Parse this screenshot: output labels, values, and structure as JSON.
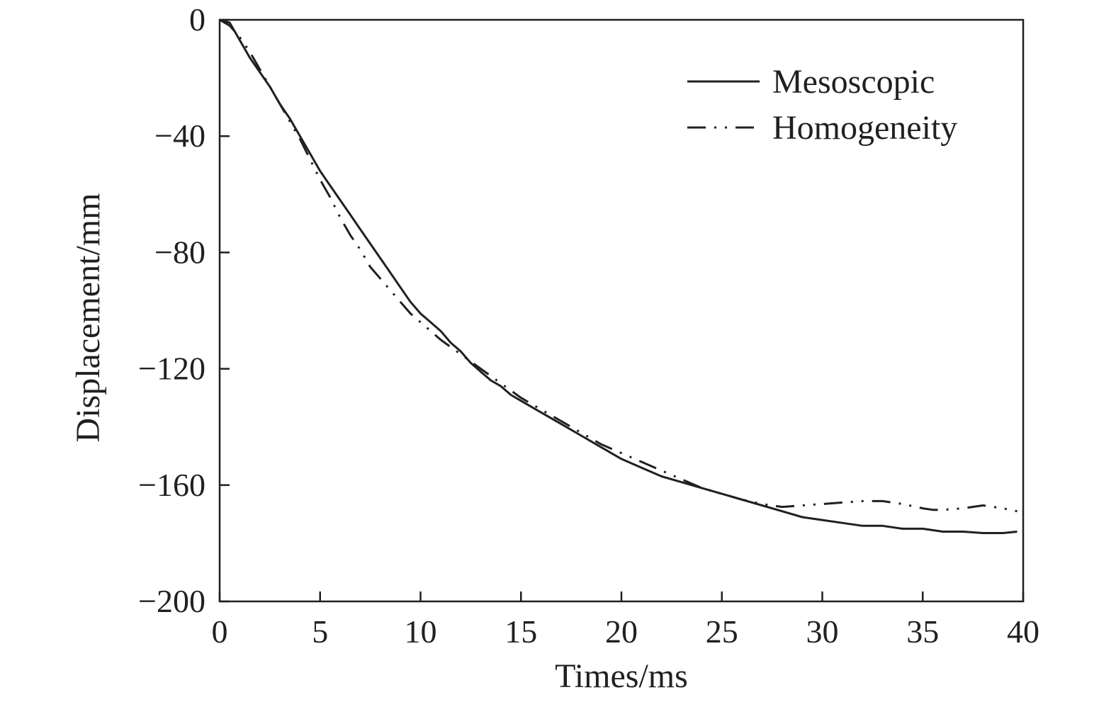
{
  "chart_data": {
    "type": "line",
    "title": "",
    "xlabel": "Times/ms",
    "ylabel": "Displacement/mm",
    "xlim": [
      0,
      40
    ],
    "ylim": [
      -200,
      0
    ],
    "x_ticks": [
      {
        "value": 0,
        "label": "0"
      },
      {
        "value": 5,
        "label": "5"
      },
      {
        "value": 10,
        "label": "10"
      },
      {
        "value": 15,
        "label": "15"
      },
      {
        "value": 20,
        "label": "20"
      },
      {
        "value": 25,
        "label": "25"
      },
      {
        "value": 30,
        "label": "30"
      },
      {
        "value": 35,
        "label": "35"
      },
      {
        "value": 40,
        "label": "40"
      }
    ],
    "y_ticks": [
      {
        "value": 0,
        "label": "0"
      },
      {
        "value": -40,
        "label": "−40"
      },
      {
        "value": -80,
        "label": "−80"
      },
      {
        "value": -120,
        "label": "−120"
      },
      {
        "value": -160,
        "label": "−160"
      },
      {
        "value": -200,
        "label": "−200"
      }
    ],
    "grid": false,
    "legend_position": "top-right",
    "series": [
      {
        "name": "Mesoscopic",
        "style": "solid",
        "color": "#231f20",
        "points": [
          [
            0,
            0
          ],
          [
            0.5,
            -1
          ],
          [
            1,
            -7
          ],
          [
            1.5,
            -13
          ],
          [
            2,
            -18
          ],
          [
            2.5,
            -23
          ],
          [
            3,
            -29
          ],
          [
            3.5,
            -34
          ],
          [
            4,
            -40
          ],
          [
            4.5,
            -46
          ],
          [
            5,
            -52
          ],
          [
            5.5,
            -57
          ],
          [
            6,
            -62
          ],
          [
            6.5,
            -67
          ],
          [
            7,
            -72
          ],
          [
            7.5,
            -77
          ],
          [
            8,
            -82
          ],
          [
            8.5,
            -87
          ],
          [
            9,
            -92
          ],
          [
            9.5,
            -97
          ],
          [
            10,
            -101
          ],
          [
            10.5,
            -104
          ],
          [
            11,
            -107
          ],
          [
            11.5,
            -111
          ],
          [
            12,
            -114
          ],
          [
            12.5,
            -118
          ],
          [
            13,
            -121
          ],
          [
            13.5,
            -124
          ],
          [
            14,
            -126
          ],
          [
            14.5,
            -129
          ],
          [
            15,
            -131
          ],
          [
            16,
            -135
          ],
          [
            17,
            -139
          ],
          [
            18,
            -143
          ],
          [
            19,
            -147
          ],
          [
            20,
            -151
          ],
          [
            21,
            -154
          ],
          [
            22,
            -157
          ],
          [
            23,
            -159
          ],
          [
            24,
            -161
          ],
          [
            25,
            -163
          ],
          [
            26,
            -165
          ],
          [
            27,
            -167
          ],
          [
            28,
            -169
          ],
          [
            29,
            -171
          ],
          [
            30,
            -172
          ],
          [
            31,
            -173
          ],
          [
            32,
            -174
          ],
          [
            33,
            -174
          ],
          [
            34,
            -175
          ],
          [
            35,
            -175
          ],
          [
            36,
            -176
          ],
          [
            37,
            -176
          ],
          [
            38,
            -176.5
          ],
          [
            39,
            -176.5
          ],
          [
            39.7,
            -176
          ]
        ]
      },
      {
        "name": "Homogeneity",
        "style": "dash-dot-dot",
        "color": "#231f20",
        "points": [
          [
            0,
            0
          ],
          [
            0.5,
            -2
          ],
          [
            1,
            -6
          ],
          [
            1.5,
            -11
          ],
          [
            2,
            -17
          ],
          [
            2.5,
            -23
          ],
          [
            3,
            -29
          ],
          [
            3.5,
            -35
          ],
          [
            4,
            -41
          ],
          [
            4.5,
            -48
          ],
          [
            5,
            -55
          ],
          [
            5.5,
            -61
          ],
          [
            6,
            -68
          ],
          [
            6.5,
            -74
          ],
          [
            7,
            -79
          ],
          [
            7.5,
            -85
          ],
          [
            8,
            -89
          ],
          [
            8.5,
            -93
          ],
          [
            9,
            -97
          ],
          [
            9.5,
            -101
          ],
          [
            10,
            -104
          ],
          [
            11,
            -110
          ],
          [
            12,
            -115
          ],
          [
            13,
            -120
          ],
          [
            14,
            -125
          ],
          [
            15,
            -130
          ],
          [
            16,
            -134
          ],
          [
            17,
            -138
          ],
          [
            18,
            -142
          ],
          [
            19,
            -146
          ],
          [
            20,
            -149
          ],
          [
            21,
            -152
          ],
          [
            22,
            -155
          ],
          [
            23,
            -158
          ],
          [
            24,
            -161
          ],
          [
            25,
            -163
          ],
          [
            26,
            -165
          ],
          [
            27,
            -166.5
          ],
          [
            28,
            -167.5
          ],
          [
            29,
            -167
          ],
          [
            30,
            -166.5
          ],
          [
            31,
            -166
          ],
          [
            32,
            -165.5
          ],
          [
            33,
            -165.5
          ],
          [
            34,
            -166.5
          ],
          [
            35,
            -168
          ],
          [
            35.5,
            -168.5
          ],
          [
            36,
            -168.5
          ],
          [
            37,
            -168
          ],
          [
            38,
            -167
          ],
          [
            39,
            -168
          ],
          [
            39.7,
            -169
          ]
        ]
      }
    ]
  }
}
